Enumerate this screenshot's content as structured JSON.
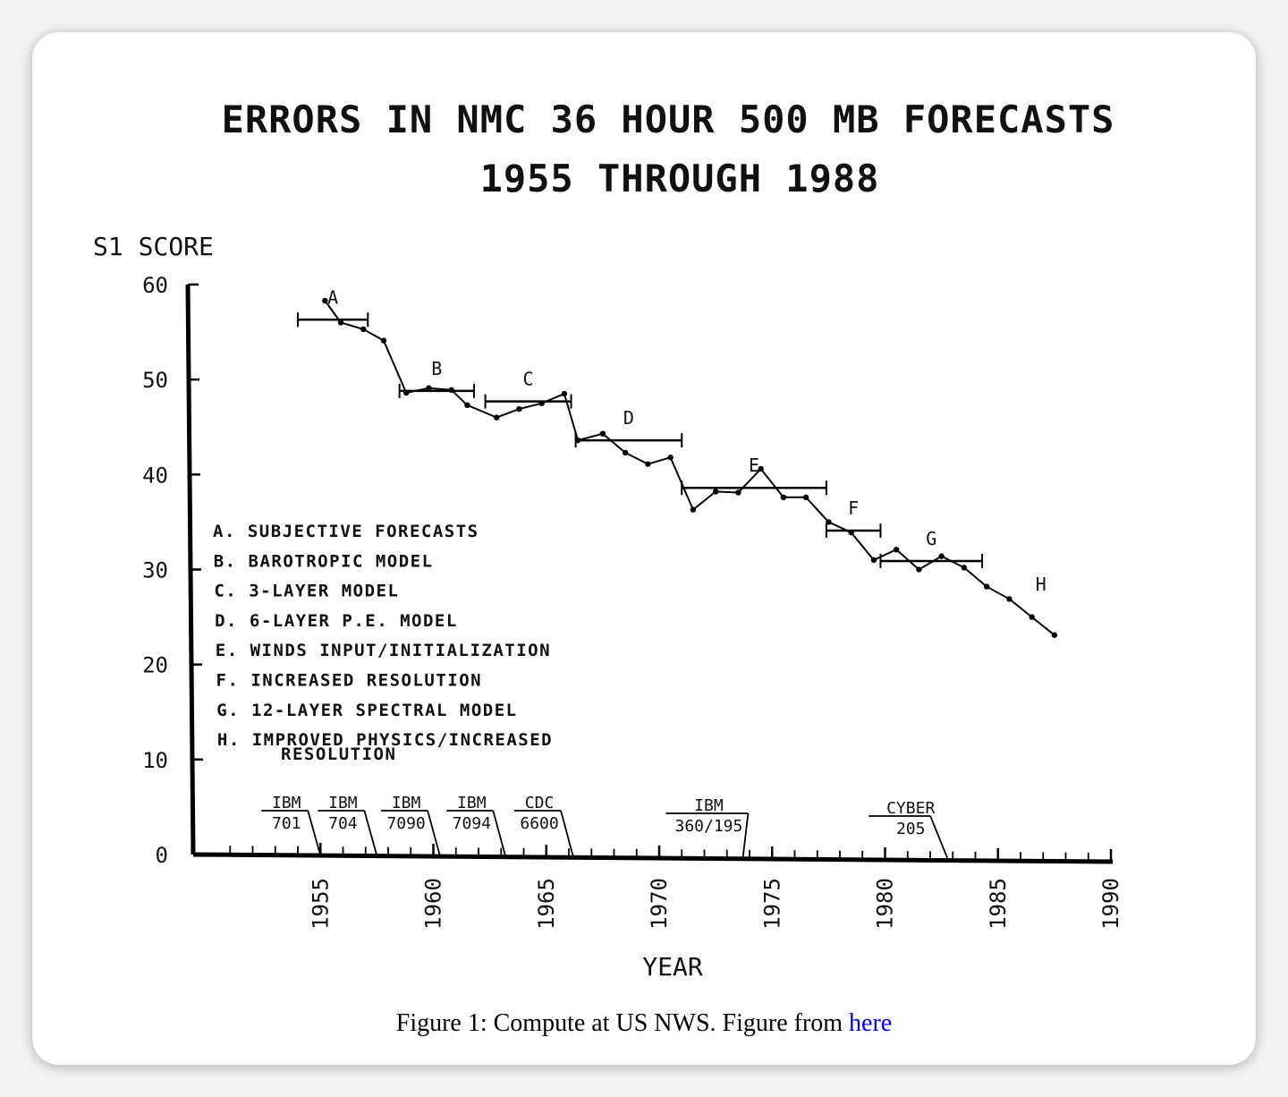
{
  "chart_data": {
    "type": "line",
    "title": [
      "ERRORS IN NMC 36 HOUR 500 MB FORECASTS",
      "1955 THROUGH 1988"
    ],
    "ylabel": "S1 SCORE",
    "xlabel": "YEAR",
    "ylim": [
      0,
      60
    ],
    "xlim": [
      1950,
      1990
    ],
    "yticks": [
      0,
      10,
      20,
      30,
      40,
      50,
      60
    ],
    "xticks": [
      1955,
      1960,
      1965,
      1970,
      1975,
      1980,
      1985,
      1990
    ],
    "series": [
      {
        "x": [
          1955.2,
          1955.9,
          1956.9,
          1957.8,
          1958.8,
          1959.8,
          1960.8,
          1961.5,
          1962.8,
          1963.8,
          1964.8,
          1965.8,
          1966.4,
          1967.5,
          1968.5,
          1969.5,
          1970.5,
          1971.5,
          1972.5,
          1973.5,
          1974.5,
          1975.5,
          1976.5,
          1977.5,
          1978.5,
          1979.5,
          1980.5,
          1981.5,
          1982.5,
          1983.5,
          1984.5,
          1985.5,
          1986.5,
          1987.5
        ],
        "y": [
          58.3,
          56.0,
          55.3,
          54.1,
          48.6,
          49.1,
          48.9,
          47.3,
          46.0,
          46.9,
          47.5,
          48.5,
          43.6,
          44.3,
          42.3,
          41.1,
          41.8,
          36.3,
          38.2,
          38.1,
          40.6,
          37.6,
          37.6,
          35.0,
          33.9,
          31.0,
          32.1,
          30.0,
          31.4,
          30.2,
          28.2,
          26.9,
          25.0,
          23.1
        ]
      }
    ],
    "periods": [
      {
        "label": "A",
        "start": 1954.0,
        "end": 1957.1,
        "y": 56.3
      },
      {
        "label": "B",
        "start": 1958.5,
        "end": 1961.8,
        "y": 48.8
      },
      {
        "label": "C",
        "start": 1962.3,
        "end": 1966.1,
        "y": 47.7
      },
      {
        "label": "D",
        "start": 1966.3,
        "end": 1971.0,
        "y": 43.6
      },
      {
        "label": "E",
        "start": 1971.0,
        "end": 1977.4,
        "y": 38.6
      },
      {
        "label": "F",
        "start": 1977.4,
        "end": 1979.8,
        "y": 34.1
      },
      {
        "label": "G",
        "start": 1979.8,
        "end": 1984.3,
        "y": 30.9
      }
    ],
    "annotations": [
      {
        "label": "H",
        "x": 1986.9,
        "y": 27.8
      }
    ],
    "legend": [
      "A. SUBJECTIVE FORECASTS",
      "B. BAROTROPIC MODEL",
      "C. 3-LAYER MODEL",
      "D. 6-LAYER P.E. MODEL",
      "E. WINDS INPUT/INITIALIZATION",
      "F. INCREASED RESOLUTION",
      "G. 12-LAYER SPECTRAL MODEL",
      "H. IMPROVED PHYSICS/INCREASED",
      "RESOLUTION"
    ],
    "computers": [
      {
        "name": "IBM",
        "model": "701",
        "year": 1955.0
      },
      {
        "name": "IBM",
        "model": "704",
        "year": 1957.5
      },
      {
        "name": "IBM",
        "model": "7090",
        "year": 1960.3
      },
      {
        "name": "IBM",
        "model": "7094",
        "year": 1963.2
      },
      {
        "name": "CDC",
        "model": "6600",
        "year": 1966.2
      },
      {
        "name": "IBM",
        "model": "360/195",
        "year": 1973.7
      },
      {
        "name": "CYBER",
        "model": "205",
        "year": 1982.8
      }
    ],
    "grid": false
  },
  "caption": {
    "text": "Figure 1: Compute at US NWS. Figure from ",
    "link_text": "here"
  }
}
